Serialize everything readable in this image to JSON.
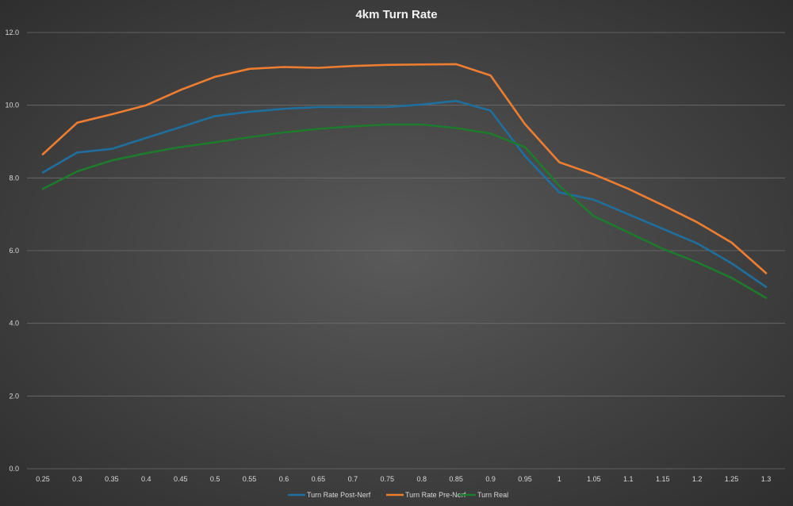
{
  "chart_data": {
    "type": "line",
    "title": "4km Turn Rate",
    "xlabel": "",
    "ylabel": "",
    "categories": [
      "0.25",
      "0.3",
      "0.35",
      "0.4",
      "0.45",
      "0.5",
      "0.55",
      "0.6",
      "0.65",
      "0.7",
      "0.75",
      "0.8",
      "0.85",
      "0.9",
      "0.95",
      "1",
      "1.05",
      "1.1",
      "1.15",
      "1.2",
      "1.25",
      "1.3"
    ],
    "ylim": [
      0,
      12
    ],
    "yticks": [
      "0.0",
      "2.0",
      "4.0",
      "6.0",
      "8.0",
      "10.0",
      "12.0"
    ],
    "grid": true,
    "legend_position": "bottom",
    "series": [
      {
        "name": "Turn Rate Post-Nerf",
        "color": "#1f6e9c",
        "values": [
          8.15,
          8.7,
          8.8,
          9.1,
          9.4,
          9.7,
          9.82,
          9.9,
          9.95,
          9.95,
          9.95,
          10.02,
          10.12,
          9.85,
          8.6,
          7.6,
          7.4,
          7.0,
          6.6,
          6.2,
          5.65,
          5.0
        ]
      },
      {
        "name": "Turn Rate Pre-Nerf",
        "color": "#ed7d31",
        "values": [
          8.65,
          9.52,
          9.75,
          10.0,
          10.42,
          10.78,
          11.0,
          11.05,
          11.03,
          11.08,
          11.11,
          11.12,
          11.13,
          10.82,
          9.48,
          8.43,
          8.1,
          7.7,
          7.25,
          6.78,
          6.22,
          5.38
        ]
      },
      {
        "name": "Turn Real",
        "color": "#1e7a2c",
        "values": [
          7.7,
          8.18,
          8.48,
          8.68,
          8.85,
          8.98,
          9.12,
          9.25,
          9.35,
          9.42,
          9.47,
          9.47,
          9.37,
          9.22,
          8.85,
          7.78,
          6.95,
          6.5,
          6.05,
          5.68,
          5.25,
          4.7
        ]
      }
    ]
  }
}
